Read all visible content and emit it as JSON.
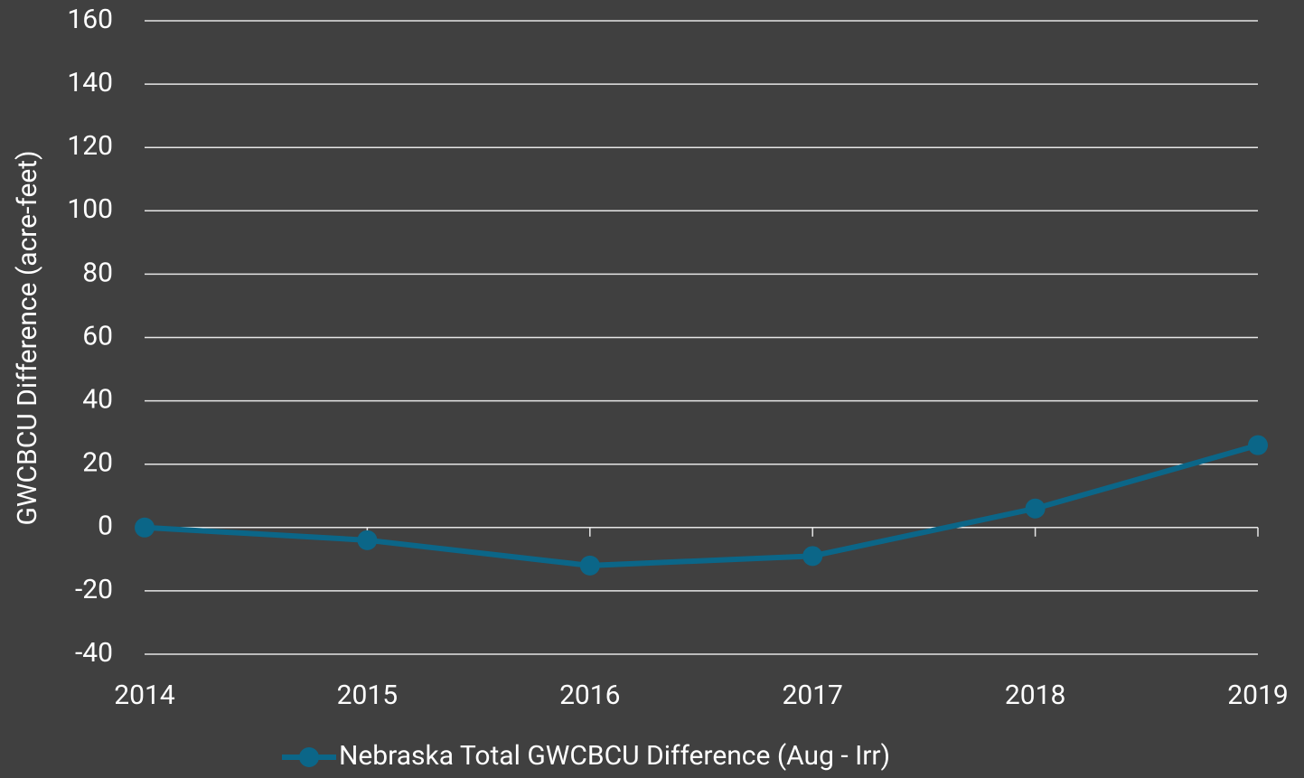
{
  "chart_data": {
    "type": "line",
    "y_label": "GWCBCU Difference (acre-feet)",
    "categories": [
      "2014",
      "2015",
      "2016",
      "2017",
      "2018",
      "2019"
    ],
    "series": [
      {
        "name": "Nebraska Total GWCBCU Difference (Aug - Irr)",
        "color": "#0b6688",
        "values": [
          0,
          -4,
          -12,
          -9,
          6,
          26
        ]
      }
    ],
    "ylim": [
      -40,
      160
    ],
    "yticks": [
      -40,
      -20,
      0,
      20,
      40,
      60,
      80,
      100,
      120,
      140,
      160
    ],
    "grid": true,
    "legend": "bottom"
  }
}
